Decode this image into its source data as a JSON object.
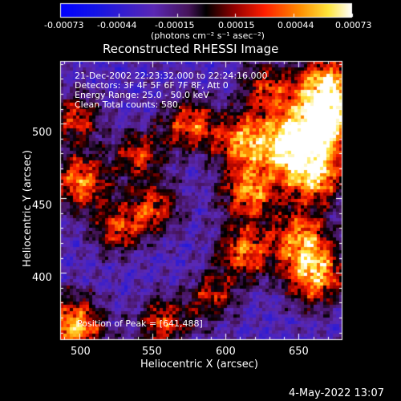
{
  "colorbar": {
    "tick_labels": [
      "-0.00073",
      "-0.00044",
      "-0.00015",
      "0.00015",
      "0.00044",
      "0.00073"
    ],
    "range": [
      -0.00073,
      0.00073
    ],
    "unit_label": "(photons cm⁻² s⁻¹ asec⁻²)"
  },
  "chart_data": {
    "type": "heatmap",
    "title": "Reconstructed RHESSI Image",
    "xlabel": "Heliocentric X (arcsec)",
    "ylabel": "Heliocentric Y (arcsec)",
    "xlim": [
      487,
      680
    ],
    "ylim": [
      355,
      542
    ],
    "xticks": [
      "500",
      "550",
      "600",
      "650"
    ],
    "yticks": [
      "500",
      "450",
      "400"
    ],
    "xtick_values": [
      500,
      550,
      600,
      650
    ],
    "ytick_values": [
      500,
      450,
      400
    ],
    "peak": [
      641,
      488
    ],
    "bright_regions": [
      {
        "x": 643,
        "y": 488,
        "level": 1.0
      },
      {
        "x": 668,
        "y": 500,
        "level": 0.85
      },
      {
        "x": 668,
        "y": 525,
        "level": 0.95
      },
      {
        "x": 660,
        "y": 465,
        "level": 0.8
      },
      {
        "x": 660,
        "y": 400,
        "level": 0.85
      },
      {
        "x": 650,
        "y": 425,
        "level": 0.7
      },
      {
        "x": 615,
        "y": 455,
        "level": 0.75
      },
      {
        "x": 610,
        "y": 490,
        "level": 0.7
      },
      {
        "x": 612,
        "y": 415,
        "level": 0.7
      },
      {
        "x": 575,
        "y": 500,
        "level": 0.65
      },
      {
        "x": 550,
        "y": 445,
        "level": 0.6
      },
      {
        "x": 500,
        "y": 462,
        "level": 0.75
      },
      {
        "x": 497,
        "y": 505,
        "level": 0.55
      },
      {
        "x": 495,
        "y": 365,
        "level": 0.85
      },
      {
        "x": 557,
        "y": 368,
        "level": 0.6
      },
      {
        "x": 525,
        "y": 430,
        "level": 0.55
      },
      {
        "x": 627,
        "y": 525,
        "level": 0.55
      },
      {
        "x": 590,
        "y": 385,
        "level": 0.5
      },
      {
        "x": 540,
        "y": 480,
        "level": 0.55
      }
    ]
  },
  "info": {
    "time_range": "21-Dec-2002 22:23:32.000 to 22:24:16.000",
    "detectors": "Detectors: 3F 4F 5F 6F 7F 8F, Att 0",
    "energy": "Energy Range: 25.0 - 50.0 keV",
    "clean": "Clean     Total counts: 580.",
    "peak_label": "Position of Peak = [641,488]"
  },
  "footer": {
    "date": "4-May-2022 13:07"
  }
}
